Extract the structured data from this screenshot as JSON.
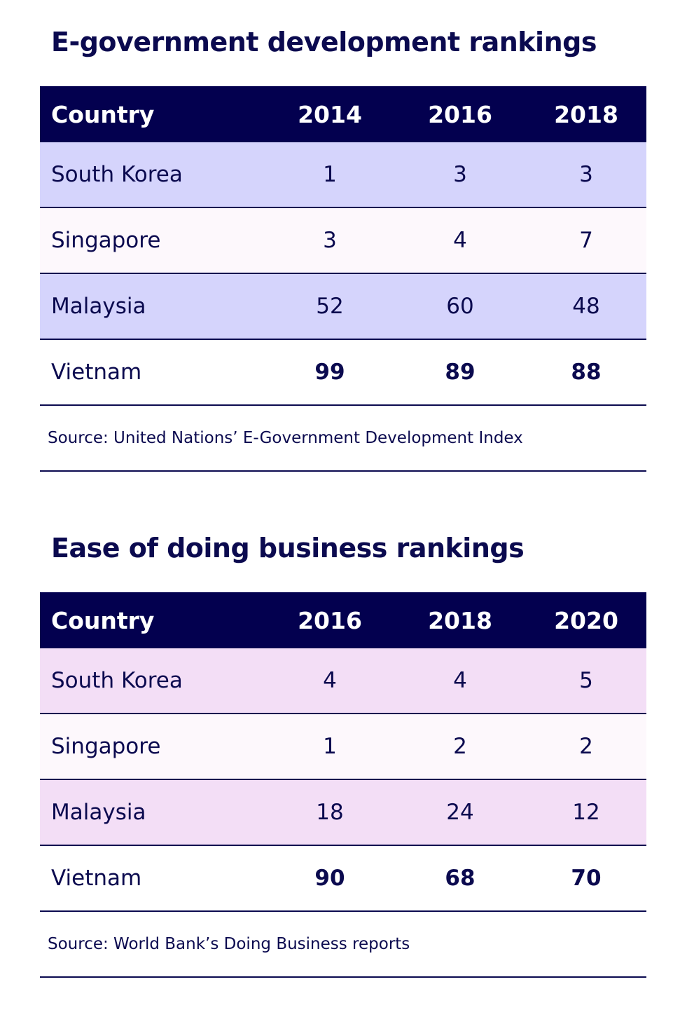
{
  "tables": [
    {
      "title": "E-government development rankings",
      "headers": [
        "Country",
        "2014",
        "2016",
        "2018"
      ],
      "rows": [
        {
          "country": "South Korea",
          "values": [
            "1",
            "3",
            "3"
          ]
        },
        {
          "country": "Singapore",
          "values": [
            "3",
            "4",
            "7"
          ]
        },
        {
          "country": "Malaysia",
          "values": [
            "52",
            "60",
            "48"
          ]
        },
        {
          "country": "Vietnam",
          "values": [
            "99",
            "89",
            "88"
          ]
        }
      ],
      "source": "Source: United Nations’ E-Government Development Index"
    },
    {
      "title": "Ease of doing business rankings",
      "headers": [
        "Country",
        "2016",
        "2018",
        "2020"
      ],
      "rows": [
        {
          "country": "South Korea",
          "values": [
            "4",
            "4",
            "5"
          ]
        },
        {
          "country": "Singapore",
          "values": [
            "1",
            "2",
            "2"
          ]
        },
        {
          "country": "Malaysia",
          "values": [
            "18",
            "24",
            "12"
          ]
        },
        {
          "country": "Vietnam",
          "values": [
            "90",
            "68",
            "70"
          ]
        }
      ],
      "source": "Source: World Bank’s Doing Business reports"
    }
  ],
  "colors": {
    "header": "#03004f",
    "text": "#0b0a4f",
    "row_alt_1": "#d5d4fc",
    "row_alt_2": "#f3def6",
    "row_plain": "#fdf8fc"
  }
}
